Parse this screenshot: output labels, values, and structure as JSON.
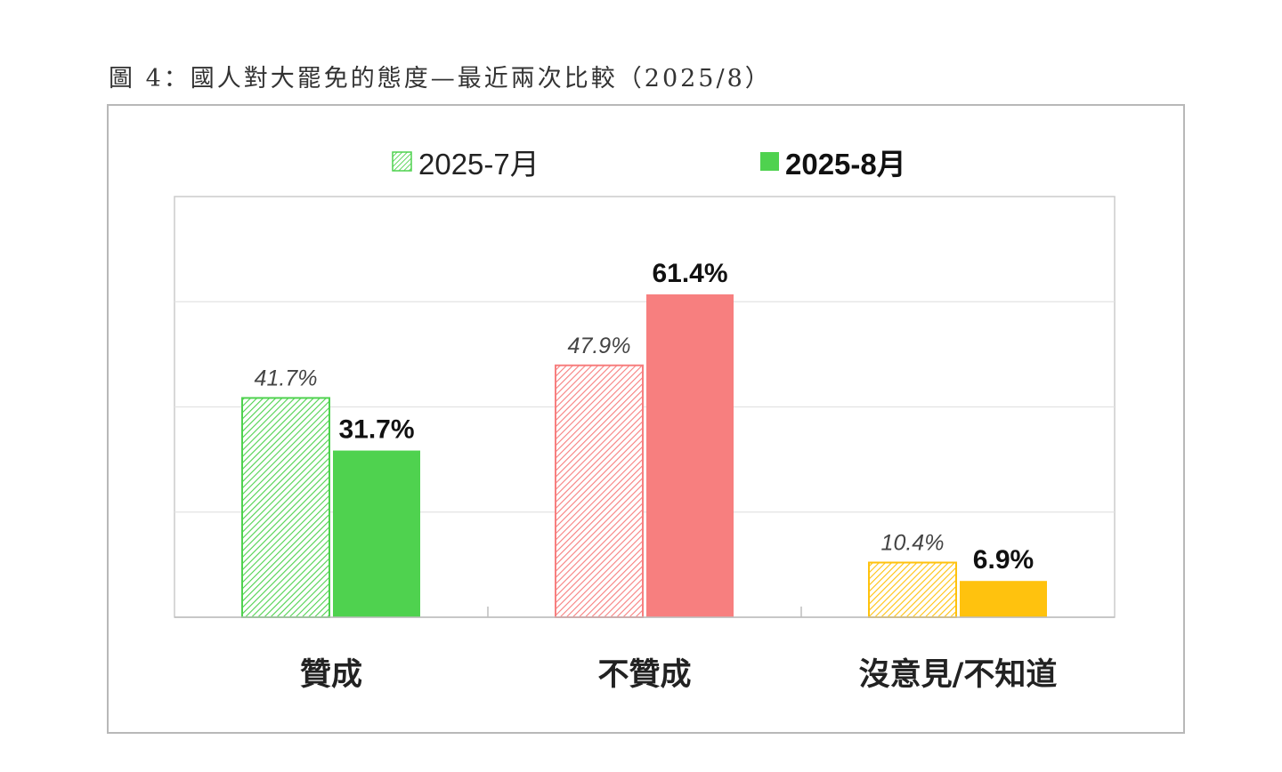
{
  "figure": {
    "title": "圖 4：國人對大罷免的態度—最近兩次比較（2025/8）"
  },
  "chart_data": {
    "type": "bar",
    "title": "",
    "xlabel": "",
    "ylabel": "",
    "ylim": [
      0,
      80
    ],
    "grid": true,
    "legend_position": "top-center",
    "categories": [
      "贊成",
      "不贊成",
      "沒意見/不知道"
    ],
    "series": [
      {
        "name": "2025-7月",
        "values": [
          41.7,
          47.9,
          10.4
        ],
        "labels": [
          "41.7%",
          "47.9%",
          "10.4%"
        ],
        "style": "hatched"
      },
      {
        "name": "2025-8月",
        "values": [
          31.7,
          61.4,
          6.9
        ],
        "labels": [
          "31.7%",
          "61.4%",
          "6.9%"
        ],
        "style": "solid"
      }
    ],
    "colors": {
      "贊成": "#4fd24f",
      "不贊成": "#f77f7f",
      "沒意見/不知道": "#ffc20e"
    }
  }
}
